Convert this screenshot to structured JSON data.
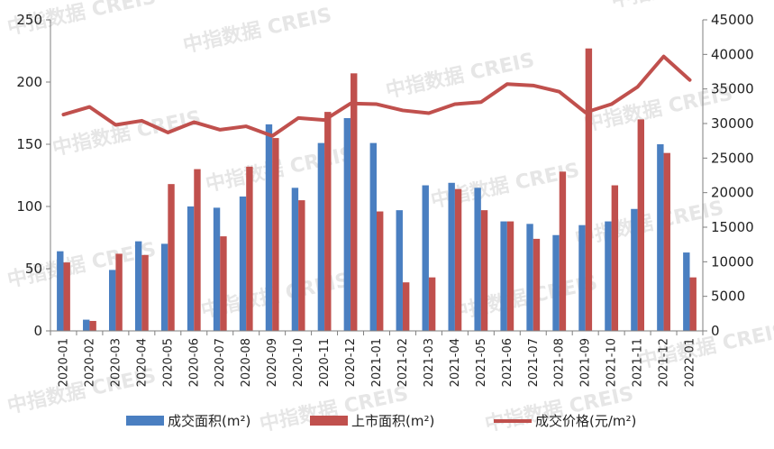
{
  "chart_data": {
    "type": "bar",
    "categories": [
      "2020-01",
      "2020-02",
      "2020-03",
      "2020-04",
      "2020-05",
      "2020-06",
      "2020-07",
      "2020-08",
      "2020-09",
      "2020-10",
      "2020-11",
      "2020-12",
      "2021-01",
      "2021-02",
      "2021-03",
      "2021-04",
      "2021-05",
      "2021-06",
      "2021-07",
      "2021-08",
      "2021-09",
      "2021-10",
      "2021-11",
      "2021-12",
      "2022-01"
    ],
    "series": [
      {
        "name": "成交面积(m²)",
        "type": "bar",
        "axis": "left",
        "color": "#4a7fc1",
        "values": [
          64,
          9,
          49,
          72,
          70,
          100,
          99,
          108,
          166,
          115,
          151,
          171,
          151,
          97,
          117,
          119,
          115,
          88,
          86,
          77,
          85,
          88,
          98,
          150,
          63
        ]
      },
      {
        "name": "上市面积(m²)",
        "type": "bar",
        "axis": "left",
        "color": "#c0504d",
        "values": [
          55,
          8,
          62,
          61,
          118,
          130,
          76,
          132,
          155,
          105,
          176,
          207,
          96,
          39,
          43,
          114,
          97,
          88,
          74,
          128,
          227,
          117,
          170,
          143,
          43
        ]
      },
      {
        "name": "成交价格(元/m²)",
        "type": "line",
        "axis": "right",
        "color": "#c0504d",
        "values": [
          31300,
          32400,
          29800,
          30400,
          28700,
          30200,
          29100,
          29600,
          28200,
          30800,
          30500,
          32900,
          32800,
          31900,
          31500,
          32800,
          33100,
          35700,
          35500,
          34600,
          31600,
          32800,
          35300,
          39700,
          36300
        ]
      }
    ],
    "y_left": {
      "min": 0,
      "max": 250,
      "ticks": [
        "0",
        "50",
        "100",
        "150",
        "200",
        "250"
      ]
    },
    "y_right": {
      "min": 0,
      "max": 45000,
      "ticks": [
        "0",
        "5000",
        "10000",
        "15000",
        "20000",
        "25000",
        "30000",
        "35000",
        "40000",
        "45000"
      ]
    },
    "grid": false,
    "legend_position": "bottom",
    "watermark": "中指数据 CREIS"
  }
}
